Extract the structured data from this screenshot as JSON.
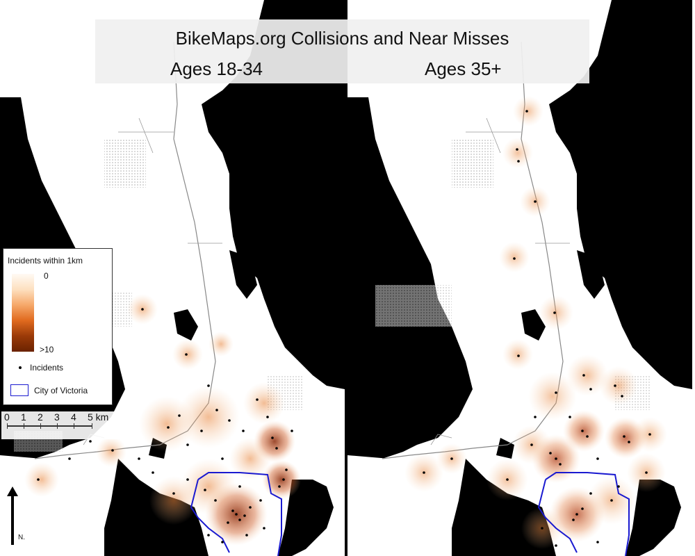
{
  "title": "BikeMaps.org Collisions and Near Misses",
  "panels": {
    "left": {
      "label": "Ages 18-34"
    },
    "right": {
      "label": "Ages 35+"
    }
  },
  "legend": {
    "title": "Incidents within 1km",
    "ramp_min": "0",
    "ramp_max": ">10",
    "incidents": "Incidents",
    "boundary": "City of Victoria",
    "colors": {
      "low": "#fffaf4",
      "mid": "#f6a86a",
      "high": "#6a2200",
      "boundary": "#1a1ad0"
    }
  },
  "scalebar": {
    "labels": [
      "0",
      "1",
      "2",
      "3",
      "4",
      "5 km"
    ]
  },
  "north_arrow": {
    "label": "N."
  }
}
